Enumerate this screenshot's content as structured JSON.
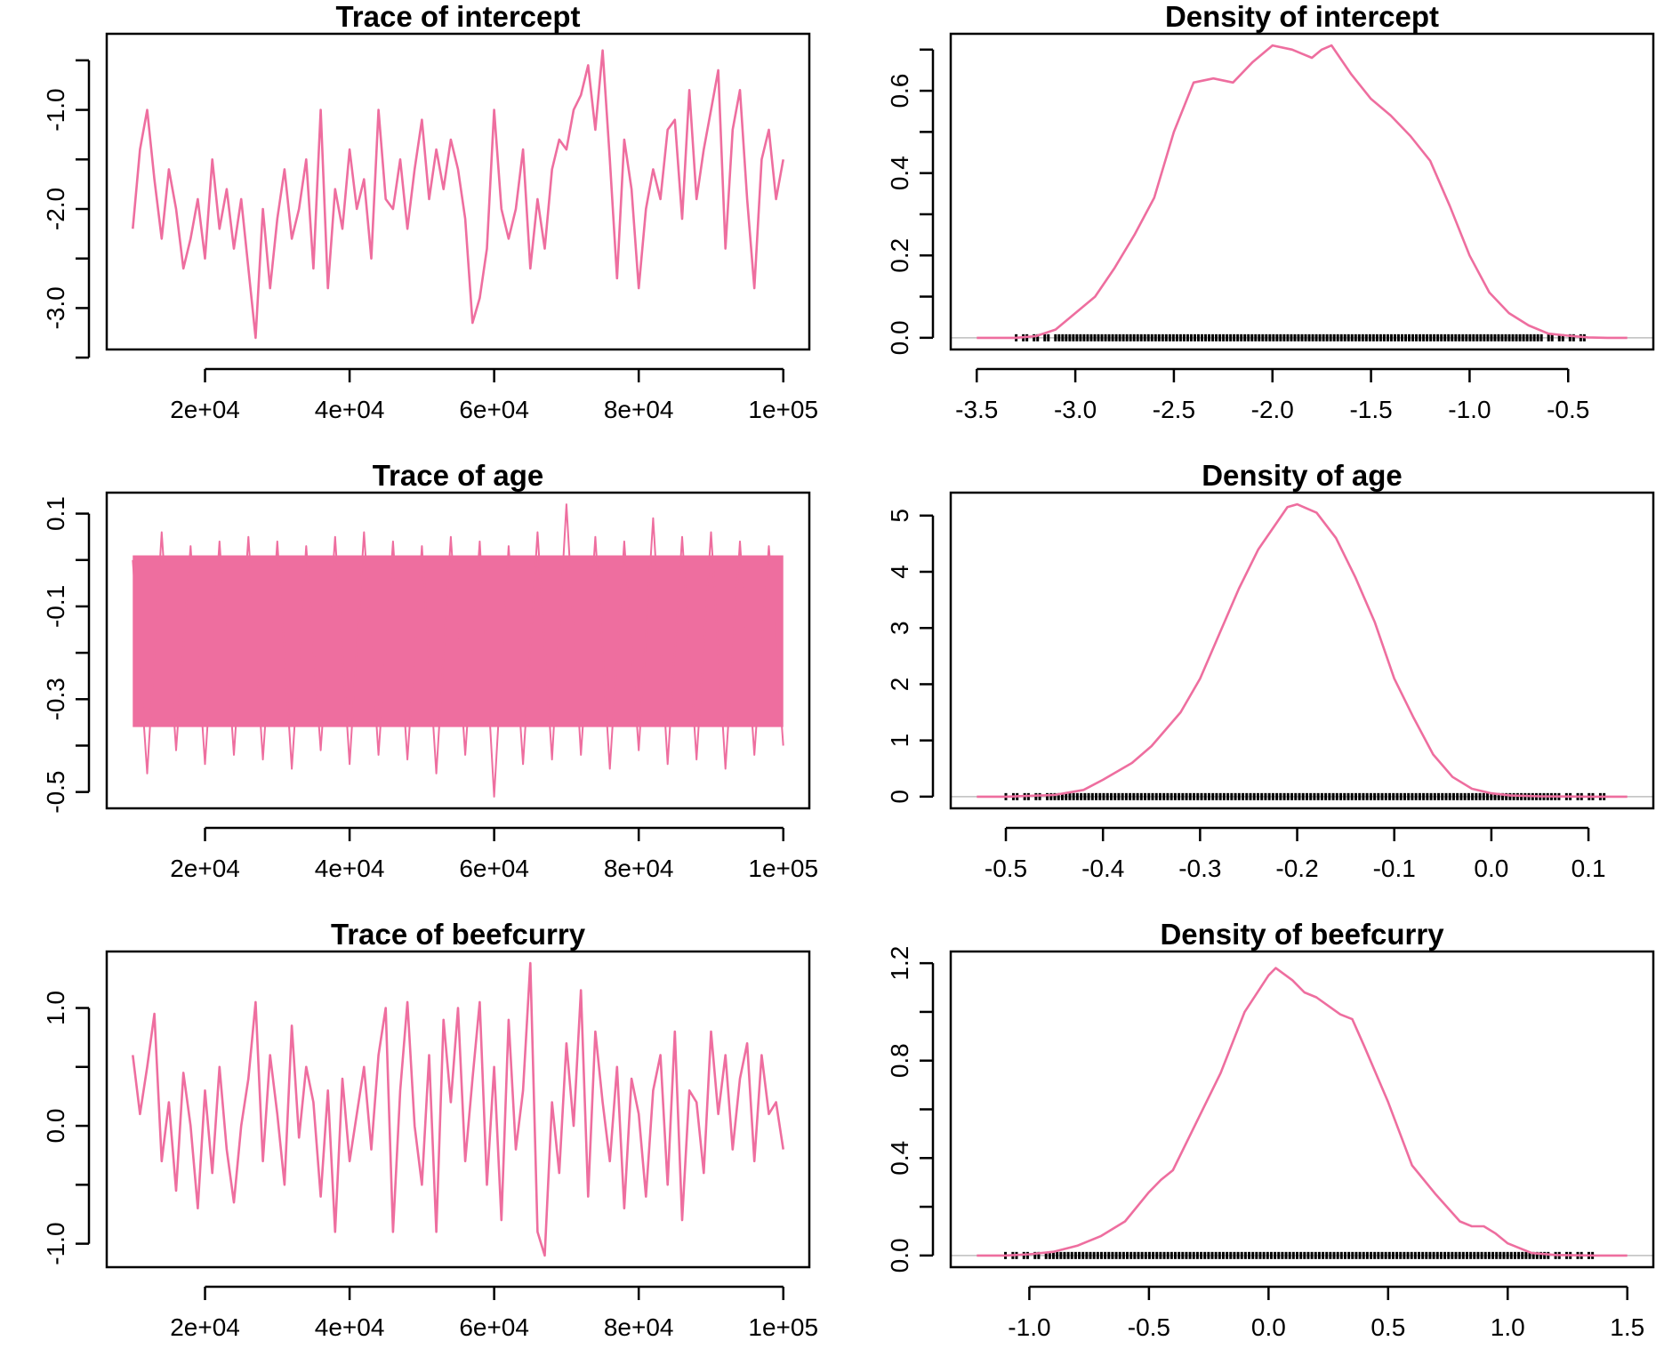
{
  "colors": {
    "series": "#EE6E9F",
    "axis": "#000000",
    "rug": "#000000",
    "baseline": "#BEBEBE"
  },
  "chart_data": [
    {
      "type": "line",
      "title": "Trace of intercept",
      "xlabel": "",
      "ylabel": "",
      "xlim": [
        10000,
        100000
      ],
      "ylim": [
        -3.3,
        -0.35
      ],
      "xticks": [
        20000,
        40000,
        60000,
        80000,
        100000
      ],
      "xtick_labels": [
        "2e+04",
        "4e+04",
        "6e+04",
        "8e+04",
        "1e+05"
      ],
      "yticks": [
        -3.5,
        -3.0,
        -2.5,
        -2.0,
        -1.5,
        -1.0,
        -0.5
      ],
      "ytick_labels": [
        "",
        "-3.0",
        "",
        "-2.0",
        "",
        "-1.0",
        ""
      ],
      "series": [
        {
          "x": [
            10000,
            11000,
            12000,
            13000,
            14000,
            15000,
            16000,
            17000,
            18000,
            19000,
            20000,
            21000,
            22000,
            23000,
            24000,
            25000,
            26000,
            27000,
            28000,
            29000,
            30000,
            31000,
            32000,
            33000,
            34000,
            35000,
            36000,
            37000,
            38000,
            39000,
            40000,
            41000,
            42000,
            43000,
            44000,
            45000,
            46000,
            47000,
            48000,
            49000,
            50000,
            51000,
            52000,
            53000,
            54000,
            55000,
            56000,
            57000,
            58000,
            59000,
            60000,
            61000,
            62000,
            63000,
            64000,
            65000,
            66000,
            67000,
            68000,
            69000,
            70000,
            71000,
            72000,
            73000,
            74000,
            75000,
            76000,
            77000,
            78000,
            79000,
            80000,
            81000,
            82000,
            83000,
            84000,
            85000,
            86000,
            87000,
            88000,
            89000,
            90000,
            91000,
            92000,
            93000,
            94000,
            95000,
            96000,
            97000,
            98000,
            99000,
            100000
          ],
          "values": [
            -2.2,
            -1.4,
            -1.0,
            -1.7,
            -2.3,
            -1.6,
            -2.0,
            -2.6,
            -2.3,
            -1.9,
            -2.5,
            -1.5,
            -2.2,
            -1.8,
            -2.4,
            -1.9,
            -2.6,
            -3.3,
            -2.0,
            -2.8,
            -2.1,
            -1.6,
            -2.3,
            -2.0,
            -1.5,
            -2.6,
            -1.0,
            -2.8,
            -1.8,
            -2.2,
            -1.4,
            -2.0,
            -1.7,
            -2.5,
            -1.0,
            -1.9,
            -2.0,
            -1.5,
            -2.2,
            -1.6,
            -1.1,
            -1.9,
            -1.4,
            -1.8,
            -1.3,
            -1.6,
            -2.1,
            -3.15,
            -2.9,
            -2.4,
            -1.0,
            -2.0,
            -2.3,
            -2.0,
            -1.4,
            -2.6,
            -1.9,
            -2.4,
            -1.6,
            -1.3,
            -1.4,
            -1.0,
            -0.85,
            -0.55,
            -1.2,
            -0.4,
            -1.5,
            -2.7,
            -1.3,
            -1.8,
            -2.8,
            -2.0,
            -1.6,
            -1.9,
            -1.2,
            -1.1,
            -2.1,
            -0.8,
            -1.9,
            -1.4,
            -1.0,
            -0.6,
            -2.4,
            -1.2,
            -0.8,
            -1.9,
            -2.8,
            -1.5,
            -1.2,
            -1.9,
            -1.5
          ]
        }
      ]
    },
    {
      "type": "area",
      "title": "Density of intercept",
      "xlabel": "",
      "ylabel": "",
      "xlim": [
        -3.5,
        -0.2
      ],
      "ylim": [
        0,
        0.71
      ],
      "xticks": [
        -3.5,
        -3.0,
        -2.5,
        -2.0,
        -1.5,
        -1.0,
        -0.5
      ],
      "xtick_labels": [
        "-3.5",
        "-3.0",
        "-2.5",
        "-2.0",
        "-1.5",
        "-1.0",
        "-0.5"
      ],
      "yticks": [
        0.0,
        0.1,
        0.2,
        0.3,
        0.4,
        0.5,
        0.6,
        0.7
      ],
      "ytick_labels": [
        "0.0",
        "",
        "0.2",
        "",
        "0.4",
        "",
        "0.6",
        ""
      ],
      "rug_range": [
        -3.3,
        -0.4
      ],
      "series": [
        {
          "x": [
            -3.5,
            -3.3,
            -3.2,
            -3.1,
            -3.0,
            -2.9,
            -2.8,
            -2.7,
            -2.6,
            -2.5,
            -2.4,
            -2.3,
            -2.2,
            -2.1,
            -2.0,
            -1.9,
            -1.85,
            -1.8,
            -1.75,
            -1.7,
            -1.6,
            -1.5,
            -1.4,
            -1.3,
            -1.2,
            -1.1,
            -1.0,
            -0.9,
            -0.8,
            -0.7,
            -0.6,
            -0.5,
            -0.4,
            -0.3,
            -0.2
          ],
          "values": [
            0.0,
            0.0,
            0.004,
            0.02,
            0.06,
            0.1,
            0.17,
            0.25,
            0.34,
            0.5,
            0.62,
            0.63,
            0.62,
            0.67,
            0.71,
            0.7,
            0.69,
            0.68,
            0.7,
            0.71,
            0.64,
            0.58,
            0.54,
            0.49,
            0.43,
            0.32,
            0.2,
            0.11,
            0.06,
            0.03,
            0.01,
            0.005,
            0.001,
            0.0,
            0.0
          ]
        }
      ]
    },
    {
      "type": "line",
      "title": "Trace of age",
      "xlabel": "",
      "ylabel": "",
      "xlim": [
        10000,
        100000
      ],
      "ylim": [
        -0.51,
        0.12
      ],
      "xticks": [
        20000,
        40000,
        60000,
        80000,
        100000
      ],
      "xtick_labels": [
        "2e+04",
        "4e+04",
        "6e+04",
        "8e+04",
        "1e+05"
      ],
      "yticks": [
        -0.5,
        -0.4,
        -0.3,
        -0.2,
        -0.1,
        0.0,
        0.1
      ],
      "ytick_labels": [
        "-0.5",
        "",
        "-0.3",
        "",
        "-0.1",
        "",
        "0.1"
      ],
      "band": {
        "x": [
          10000,
          100000
        ],
        "upper": 0.01,
        "lower": -0.36,
        "max_peak": 0.12,
        "min_peak": -0.51
      },
      "series": [
        {
          "x": [
            10000,
            12000,
            14000,
            16000,
            18000,
            20000,
            22000,
            24000,
            26000,
            28000,
            30000,
            32000,
            34000,
            36000,
            38000,
            40000,
            42000,
            44000,
            46000,
            48000,
            50000,
            52000,
            54000,
            56000,
            58000,
            60000,
            62000,
            64000,
            66000,
            68000,
            70000,
            72000,
            74000,
            76000,
            78000,
            80000,
            82000,
            84000,
            86000,
            88000,
            90000,
            92000,
            94000,
            96000,
            98000,
            100000
          ],
          "values": [
            0.0,
            -0.46,
            0.06,
            -0.41,
            0.03,
            -0.44,
            0.04,
            -0.42,
            0.05,
            -0.43,
            0.04,
            -0.45,
            0.03,
            -0.41,
            0.05,
            -0.44,
            0.06,
            -0.42,
            0.04,
            -0.43,
            0.03,
            -0.46,
            0.05,
            -0.42,
            0.04,
            -0.51,
            0.03,
            -0.44,
            0.06,
            -0.43,
            0.12,
            -0.42,
            0.05,
            -0.45,
            0.04,
            -0.41,
            0.09,
            -0.44,
            0.05,
            -0.43,
            0.06,
            -0.45,
            0.04,
            -0.42,
            0.03,
            -0.4
          ]
        }
      ]
    },
    {
      "type": "area",
      "title": "Density of age",
      "xlabel": "",
      "ylabel": "",
      "xlim": [
        -0.53,
        0.14
      ],
      "ylim": [
        0,
        5.2
      ],
      "xticks": [
        -0.5,
        -0.4,
        -0.3,
        -0.2,
        -0.1,
        0.0,
        0.1
      ],
      "xtick_labels": [
        "-0.5",
        "-0.4",
        "-0.3",
        "-0.2",
        "-0.1",
        "0.0",
        "0.1"
      ],
      "yticks": [
        0,
        1,
        2,
        3,
        4,
        5
      ],
      "ytick_labels": [
        "0",
        "1",
        "2",
        "3",
        "4",
        "5"
      ],
      "rug_range": [
        -0.5,
        0.12
      ],
      "series": [
        {
          "x": [
            -0.53,
            -0.5,
            -0.45,
            -0.42,
            -0.4,
            -0.37,
            -0.35,
            -0.32,
            -0.3,
            -0.28,
            -0.26,
            -0.24,
            -0.22,
            -0.21,
            -0.2,
            -0.18,
            -0.16,
            -0.14,
            -0.12,
            -0.1,
            -0.08,
            -0.06,
            -0.04,
            -0.02,
            0.0,
            0.02,
            0.05,
            0.08,
            0.1,
            0.14
          ],
          "values": [
            0.0,
            0.0,
            0.03,
            0.12,
            0.3,
            0.6,
            0.9,
            1.5,
            2.1,
            2.9,
            3.7,
            4.4,
            4.9,
            5.15,
            5.2,
            5.05,
            4.6,
            3.9,
            3.1,
            2.1,
            1.4,
            0.75,
            0.35,
            0.14,
            0.06,
            0.02,
            0.006,
            0.002,
            0.0,
            0.0
          ]
        }
      ]
    },
    {
      "type": "line",
      "title": "Trace of beefcurry",
      "xlabel": "",
      "ylabel": "",
      "xlim": [
        10000,
        100000
      ],
      "ylim": [
        -1.1,
        1.38
      ],
      "xticks": [
        20000,
        40000,
        60000,
        80000,
        100000
      ],
      "xtick_labels": [
        "2e+04",
        "4e+04",
        "6e+04",
        "8e+04",
        "1e+05"
      ],
      "yticks": [
        -1.0,
        -0.5,
        0.0,
        0.5,
        1.0
      ],
      "ytick_labels": [
        "-1.0",
        "",
        "0.0",
        "",
        "1.0"
      ],
      "series": [
        {
          "x": [
            10000,
            11000,
            12000,
            13000,
            14000,
            15000,
            16000,
            17000,
            18000,
            19000,
            20000,
            21000,
            22000,
            23000,
            24000,
            25000,
            26000,
            27000,
            28000,
            29000,
            30000,
            31000,
            32000,
            33000,
            34000,
            35000,
            36000,
            37000,
            38000,
            39000,
            40000,
            41000,
            42000,
            43000,
            44000,
            45000,
            46000,
            47000,
            48000,
            49000,
            50000,
            51000,
            52000,
            53000,
            54000,
            55000,
            56000,
            57000,
            58000,
            59000,
            60000,
            61000,
            62000,
            63000,
            64000,
            65000,
            66000,
            67000,
            68000,
            69000,
            70000,
            71000,
            72000,
            73000,
            74000,
            75000,
            76000,
            77000,
            78000,
            79000,
            80000,
            81000,
            82000,
            83000,
            84000,
            85000,
            86000,
            87000,
            88000,
            89000,
            90000,
            91000,
            92000,
            93000,
            94000,
            95000,
            96000,
            97000,
            98000,
            99000,
            100000
          ],
          "values": [
            0.6,
            0.1,
            0.5,
            0.95,
            -0.3,
            0.2,
            -0.55,
            0.45,
            0.0,
            -0.7,
            0.3,
            -0.4,
            0.5,
            -0.2,
            -0.65,
            0.0,
            0.4,
            1.05,
            -0.3,
            0.6,
            0.1,
            -0.5,
            0.85,
            -0.1,
            0.5,
            0.2,
            -0.6,
            0.3,
            -0.9,
            0.4,
            -0.3,
            0.1,
            0.5,
            -0.2,
            0.6,
            1.0,
            -0.9,
            0.3,
            1.05,
            0.0,
            -0.5,
            0.6,
            -0.9,
            0.9,
            0.2,
            1.0,
            -0.3,
            0.4,
            1.05,
            -0.5,
            0.5,
            -0.8,
            0.9,
            -0.2,
            0.3,
            1.38,
            -0.9,
            -1.1,
            0.2,
            -0.4,
            0.7,
            0.0,
            1.15,
            -0.6,
            0.8,
            0.2,
            -0.3,
            0.5,
            -0.7,
            0.4,
            0.1,
            -0.6,
            0.3,
            0.6,
            -0.5,
            0.8,
            -0.8,
            0.3,
            0.2,
            -0.4,
            0.8,
            0.1,
            0.6,
            -0.2,
            0.4,
            0.7,
            -0.3,
            0.6,
            0.1,
            0.2,
            -0.2
          ]
        }
      ]
    },
    {
      "type": "area",
      "title": "Density of beefcurry",
      "xlabel": "",
      "ylabel": "",
      "xlim": [
        -1.22,
        1.5
      ],
      "ylim": [
        0,
        1.2
      ],
      "xticks": [
        -1.0,
        -0.5,
        0.0,
        0.5,
        1.0,
        1.5
      ],
      "xtick_labels": [
        "-1.0",
        "-0.5",
        "0.0",
        "0.5",
        "1.0",
        "1.5"
      ],
      "yticks": [
        0.0,
        0.2,
        0.4,
        0.6,
        0.8,
        1.0,
        1.2
      ],
      "ytick_labels": [
        "0.0",
        "",
        "0.4",
        "",
        "0.8",
        "",
        "1.2"
      ],
      "rug_range": [
        -1.1,
        1.37
      ],
      "series": [
        {
          "x": [
            -1.22,
            -1.1,
            -1.0,
            -0.9,
            -0.8,
            -0.7,
            -0.6,
            -0.5,
            -0.45,
            -0.4,
            -0.3,
            -0.2,
            -0.1,
            0.0,
            0.03,
            0.1,
            0.15,
            0.2,
            0.3,
            0.35,
            0.4,
            0.5,
            0.6,
            0.7,
            0.8,
            0.85,
            0.9,
            0.95,
            1.0,
            1.1,
            1.2,
            1.37,
            1.5
          ],
          "values": [
            0.0,
            0.0,
            0.005,
            0.015,
            0.04,
            0.08,
            0.14,
            0.26,
            0.31,
            0.35,
            0.55,
            0.75,
            1.0,
            1.15,
            1.18,
            1.13,
            1.08,
            1.06,
            0.99,
            0.97,
            0.86,
            0.63,
            0.37,
            0.25,
            0.14,
            0.12,
            0.12,
            0.09,
            0.05,
            0.01,
            0.002,
            0.0,
            0.0
          ]
        }
      ]
    }
  ]
}
